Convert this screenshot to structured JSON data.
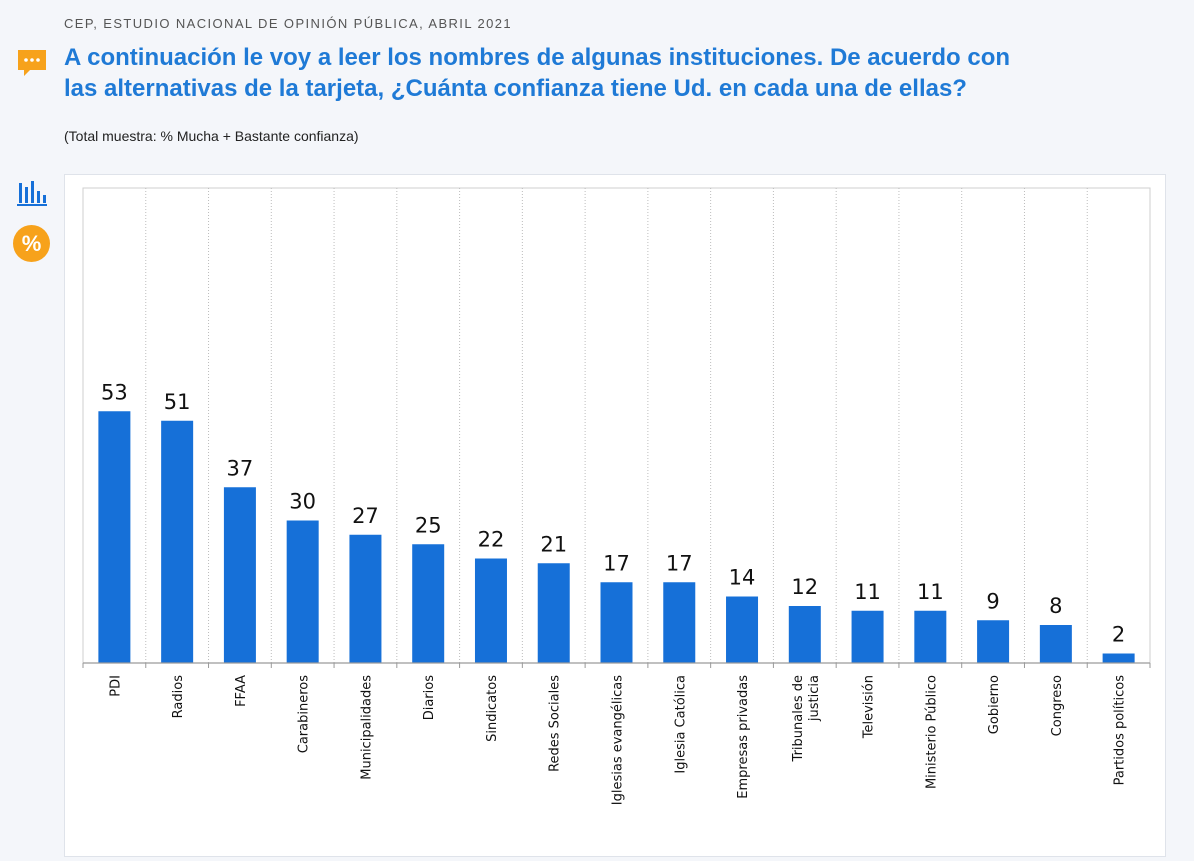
{
  "header": {
    "source": "CEP, ESTUDIO NACIONAL DE OPINIÓN PÚBLICA, ABRIL 2021",
    "question_line1": "A continuación le voy a leer los nombres de algunas instituciones. De acuerdo con",
    "question_line2": "las alternativas de la tarjeta, ¿Cuánta confianza tiene Ud. en cada una de ellas?",
    "note": "(Total muestra: % Mucha + Bastante confianza)"
  },
  "sidebar": {
    "chart_icon": "bar-chart-icon",
    "percent_icon": "percent-icon",
    "percent_symbol": "%"
  },
  "colors": {
    "title": "#1f7ad6",
    "bar": "#1670d8",
    "percent_badge": "#f7a21b",
    "comment_icon": "#f7a21b"
  },
  "chart_data": {
    "type": "bar",
    "categories": [
      [
        "PDI"
      ],
      [
        "Radios"
      ],
      [
        "FFAA"
      ],
      [
        "Carabineros"
      ],
      [
        "Municipalidades"
      ],
      [
        "Diarios"
      ],
      [
        "Sindicatos"
      ],
      [
        "Redes Sociales"
      ],
      [
        "Iglesias evangélicas"
      ],
      [
        "Iglesia Católica"
      ],
      [
        "Empresas privadas"
      ],
      [
        "Tribunales de",
        "justicia"
      ],
      [
        "Televisión"
      ],
      [
        "Ministerio Público"
      ],
      [
        "Gobierno"
      ],
      [
        "Congreso"
      ],
      [
        "Partidos políticos"
      ]
    ],
    "values": [
      53,
      51,
      37,
      30,
      27,
      25,
      22,
      21,
      17,
      17,
      14,
      12,
      11,
      11,
      9,
      8,
      2
    ],
    "ylim": [
      0,
      100
    ],
    "grid": "vertical",
    "legend": "none",
    "data_labels": true
  }
}
